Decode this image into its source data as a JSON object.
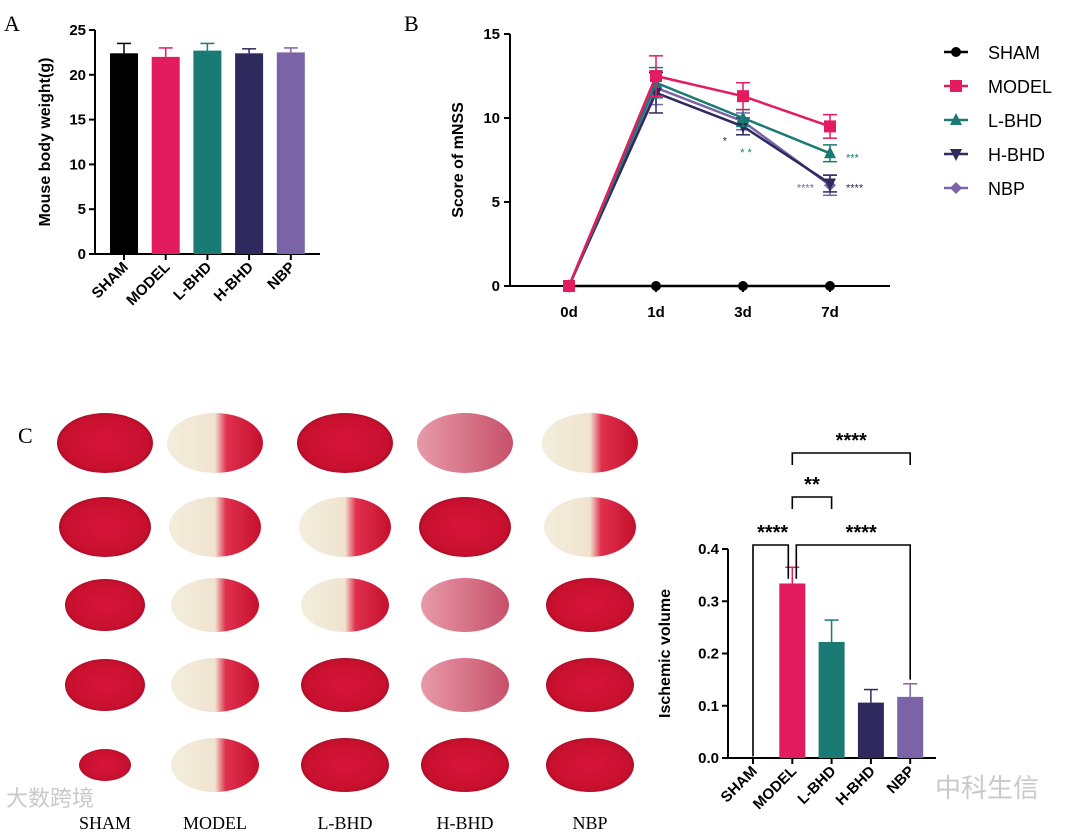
{
  "panels": {
    "a": "A",
    "b": "B",
    "c": "C"
  },
  "colors": {
    "SHAM": "#000000",
    "MODEL": "#e31c5f",
    "L-BHD": "#1a7a74",
    "H-BHD": "#2e2a5e",
    "NBP": "#7b63a8"
  },
  "chart_data": [
    {
      "type": "bar",
      "title": "",
      "xlabel": "",
      "ylabel": "Mouse body weight(g)",
      "ylim": [
        0,
        25
      ],
      "yticks": [
        "0",
        "5",
        "10",
        "15",
        "20",
        "25"
      ],
      "categories": [
        "SHAM",
        "MODEL",
        "L-BHD",
        "H-BHD",
        "NBP"
      ],
      "values": [
        22.4,
        22.0,
        22.7,
        22.4,
        22.5
      ],
      "errors": [
        1.1,
        1.0,
        0.8,
        0.5,
        0.5
      ]
    },
    {
      "type": "line",
      "xlabel": "",
      "ylabel": "Score of mNSS",
      "ylim": [
        0,
        15
      ],
      "yticks": [
        "0",
        "5",
        "10",
        "15"
      ],
      "x": [
        "0d",
        "1d",
        "3d",
        "7d"
      ],
      "legend_position": "right",
      "series": [
        {
          "name": "SHAM",
          "marker": "circle",
          "values": [
            0,
            0,
            0,
            0
          ],
          "errors": [
            0,
            0,
            0,
            0
          ]
        },
        {
          "name": "MODEL",
          "marker": "square",
          "values": [
            0,
            12.5,
            11.3,
            9.5
          ],
          "errors": [
            0,
            1.2,
            0.8,
            0.7
          ]
        },
        {
          "name": "L-BHD",
          "marker": "triangle-up",
          "values": [
            0,
            12.1,
            10.0,
            7.9
          ],
          "errors": [
            0,
            0.9,
            0.5,
            0.5
          ]
        },
        {
          "name": "H-BHD",
          "marker": "triangle-down",
          "values": [
            0,
            11.5,
            9.5,
            6.1
          ],
          "errors": [
            0,
            1.2,
            0.5,
            0.5
          ]
        },
        {
          "name": "NBP",
          "marker": "diamond",
          "values": [
            0,
            11.8,
            9.8,
            6.0
          ],
          "errors": [
            0,
            1.0,
            0.5,
            0.6
          ]
        }
      ],
      "annotations": [
        {
          "text": "*",
          "x": "3d",
          "y": 8.9,
          "side": "left",
          "color": "#2e2a5e"
        },
        {
          "text": "* *",
          "x": "3d",
          "y": 8.2,
          "side": "center",
          "color": "#1a7a74"
        },
        {
          "text": "***",
          "x": "7d",
          "y": 7.9,
          "side": "right",
          "color": "#1a7a74"
        },
        {
          "text": "****",
          "x": "7d",
          "y": 6.1,
          "side": "left",
          "color": "#7b63a8"
        },
        {
          "text": "****",
          "x": "7d",
          "y": 6.1,
          "side": "right",
          "color": "#2e2a5e"
        }
      ]
    },
    {
      "type": "bar",
      "xlabel": "",
      "ylabel": "Ischemic volume",
      "ylim": [
        0,
        0.4
      ],
      "yticks": [
        "0.0",
        "0.1",
        "0.2",
        "0.3",
        "0.4"
      ],
      "categories": [
        "SHAM",
        "MODEL",
        "L-BHD",
        "H-BHD",
        "NBP"
      ],
      "values": [
        0,
        0.334,
        0.222,
        0.106,
        0.117
      ],
      "errors": [
        0,
        0.031,
        0.042,
        0.025,
        0.025
      ],
      "significance": [
        {
          "from": "MODEL",
          "to": "SHAM",
          "label": "****"
        },
        {
          "from": "MODEL",
          "to": "L-BHD",
          "label": "**"
        },
        {
          "from": "MODEL",
          "to": "H-BHD",
          "label": "****"
        },
        {
          "from": "MODEL",
          "to": "NBP",
          "label": "****"
        }
      ]
    }
  ],
  "brain_columns": [
    "SHAM",
    "MODEL",
    "L-BHD",
    "H-BHD",
    "NBP"
  ],
  "watermarks": {
    "bottom_left": "大数跨境",
    "bottom_right": "中科生信"
  }
}
